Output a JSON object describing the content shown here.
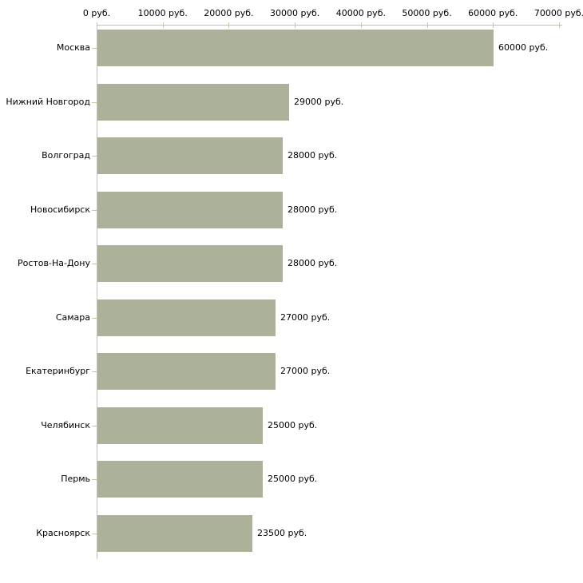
{
  "chart_data": {
    "type": "bar",
    "orientation": "horizontal",
    "title": "",
    "categories": [
      "Москва",
      "Нижний Новгород",
      "Волгоград",
      "Новосибирск",
      "Ростов-На-Дону",
      "Самара",
      "Екатеринбург",
      "Челябинск",
      "Пермь",
      "Красноярск"
    ],
    "values": [
      60000,
      29000,
      28000,
      28000,
      28000,
      27000,
      27000,
      25000,
      25000,
      23500
    ],
    "value_labels": [
      "60000 руб.",
      "29000 руб.",
      "28000 руб.",
      "28000 руб.",
      "28000 руб.",
      "27000 руб.",
      "27000 руб.",
      "25000 руб.",
      "25000 руб.",
      "23500 руб."
    ],
    "x_ticks": [
      0,
      10000,
      20000,
      30000,
      40000,
      50000,
      60000,
      70000
    ],
    "x_tick_labels": [
      "0 руб.",
      "10000 руб.",
      "20000 руб.",
      "30000 руб.",
      "40000 руб.",
      "50000 руб.",
      "60000 руб.",
      "70000 руб."
    ],
    "xlim": [
      0,
      70000
    ],
    "unit": "руб.",
    "grid": false,
    "legend": false,
    "xlabel": "",
    "ylabel": ""
  },
  "colors": {
    "bar_fill": "#ACB299",
    "axis_line": "#C0C0C0",
    "tick_mark": "#C6C6A4",
    "label_text": "#000000",
    "background": "#FFFFFF"
  }
}
